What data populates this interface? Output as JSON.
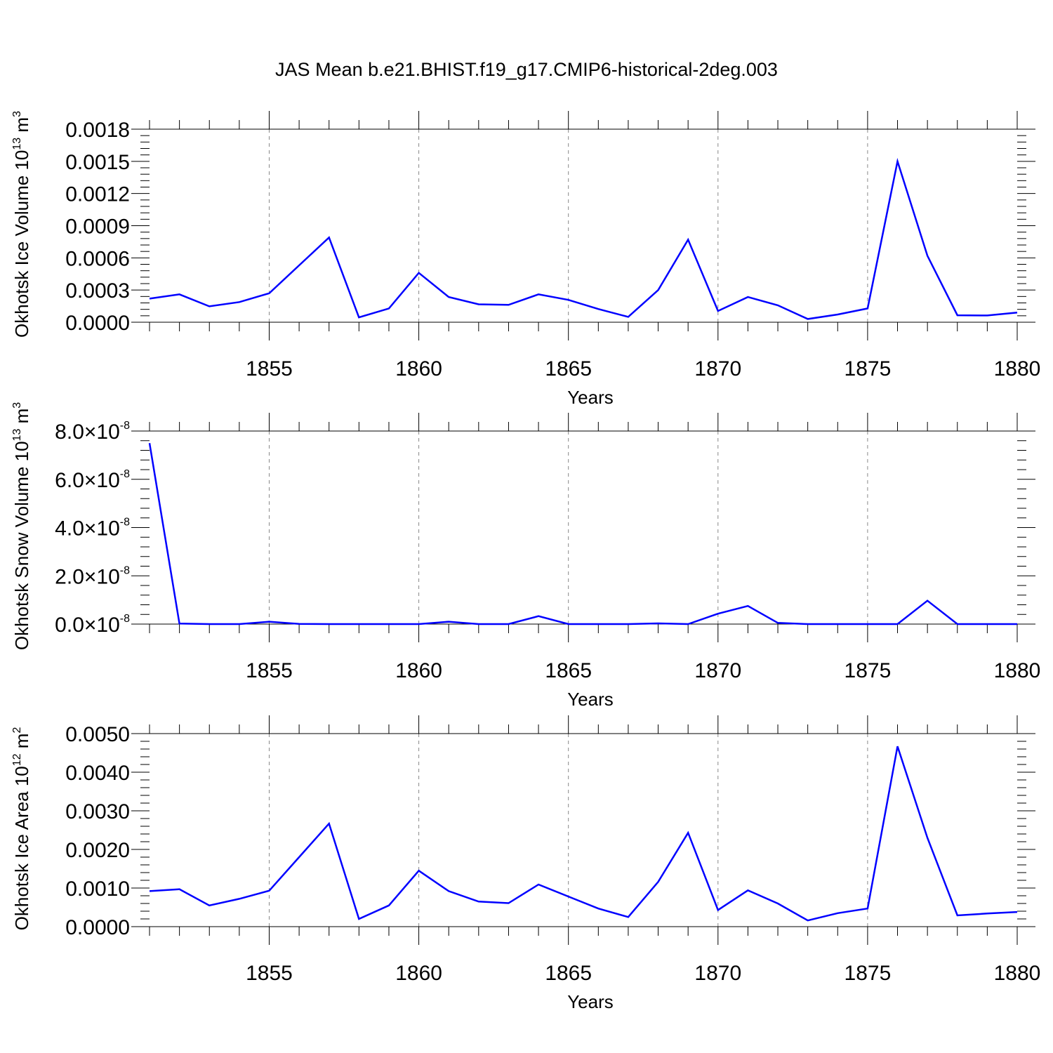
{
  "figure_title": "JAS Mean b.e21.BHIST.f19_g17.CMIP6-historical-2deg.003",
  "chart_data": [
    {
      "type": "line",
      "ylabel": {
        "text": "Okhotsk Ice Volume 10",
        "exp": "13",
        "unit": " m",
        "unit_exp": "3"
      },
      "xlabel": "Years",
      "xlim": [
        1851,
        1880
      ],
      "ylim": [
        0,
        0.0018
      ],
      "xticks": [
        1855,
        1860,
        1865,
        1870,
        1875,
        1880
      ],
      "yticks": [
        0,
        0.0003,
        0.0006,
        0.0009,
        0.0012,
        0.0015,
        0.0018
      ],
      "ytick_labels": [
        "0.0000",
        "0.0003",
        "0.0006",
        "0.0009",
        "0.0012",
        "0.0015",
        "0.0018"
      ],
      "ytick_exp": null,
      "grid": "x-dashed",
      "line_color": "#0000ff",
      "x": [
        1851,
        1852,
        1853,
        1854,
        1855,
        1856,
        1857,
        1858,
        1859,
        1860,
        1861,
        1862,
        1863,
        1864,
        1865,
        1866,
        1867,
        1868,
        1869,
        1870,
        1871,
        1872,
        1873,
        1874,
        1875,
        1876,
        1877,
        1878,
        1879,
        1880
      ],
      "values": [
        0.00022,
        0.00026,
        0.000148,
        0.000188,
        0.00027,
        0.00053,
        0.00079,
        4.5e-05,
        0.000128,
        0.00046,
        0.000235,
        0.000167,
        0.000162,
        0.00026,
        0.000208,
        0.000123,
        5e-05,
        0.0003,
        0.00077,
        0.000105,
        0.000235,
        0.000158,
        3e-05,
        7.2e-05,
        0.000128,
        0.0015,
        0.00062,
        6.5e-05,
        6.3e-05,
        9e-05
      ]
    },
    {
      "type": "line",
      "ylabel": {
        "text": "Okhotsk Snow Volume 10",
        "exp": "13",
        "unit": " m",
        "unit_exp": "3"
      },
      "xlabel": "Years",
      "xlim": [
        1851,
        1880
      ],
      "ylim": [
        0,
        8e-08
      ],
      "xticks": [
        1855,
        1860,
        1865,
        1870,
        1875,
        1880
      ],
      "yticks": [
        0,
        2e-08,
        4e-08,
        6e-08,
        8e-08
      ],
      "ytick_labels": [
        "0.0×10",
        "2.0×10",
        "4.0×10",
        "6.0×10",
        "8.0×10"
      ],
      "ytick_exp": "-8",
      "grid": "x-dashed",
      "line_color": "#0000ff",
      "x": [
        1851,
        1852,
        1853,
        1854,
        1855,
        1856,
        1857,
        1858,
        1859,
        1860,
        1861,
        1862,
        1863,
        1864,
        1865,
        1866,
        1867,
        1868,
        1869,
        1870,
        1871,
        1872,
        1873,
        1874,
        1875,
        1876,
        1877,
        1878,
        1879,
        1880
      ],
      "values": [
        7.5e-08,
        2e-10,
        0,
        0,
        1e-09,
        1e-10,
        0,
        0,
        0,
        0,
        1e-09,
        0,
        0,
        3.3e-09,
        0,
        0,
        0,
        3e-10,
        0,
        4.3e-09,
        7.5e-09,
        5e-10,
        0,
        0,
        0,
        0,
        9.7e-09,
        0,
        0,
        0
      ]
    },
    {
      "type": "line",
      "ylabel": {
        "text": "Okhotsk Ice Area 10",
        "exp": "12",
        "unit": " m",
        "unit_exp": "2"
      },
      "xlabel": "Years",
      "xlim": [
        1851,
        1880
      ],
      "ylim": [
        0,
        0.005
      ],
      "xticks": [
        1855,
        1860,
        1865,
        1870,
        1875,
        1880
      ],
      "yticks": [
        0,
        0.001,
        0.002,
        0.003,
        0.004,
        0.005
      ],
      "ytick_labels": [
        "0.0000",
        "0.0010",
        "0.0020",
        "0.0030",
        "0.0040",
        "0.0050"
      ],
      "ytick_exp": null,
      "grid": "x-dashed",
      "line_color": "#0000ff",
      "x": [
        1851,
        1852,
        1853,
        1854,
        1855,
        1856,
        1857,
        1858,
        1859,
        1860,
        1861,
        1862,
        1863,
        1864,
        1865,
        1866,
        1867,
        1868,
        1869,
        1870,
        1871,
        1872,
        1873,
        1874,
        1875,
        1876,
        1877,
        1878,
        1879,
        1880
      ],
      "values": [
        0.00092,
        0.00097,
        0.00055,
        0.00072,
        0.00093,
        0.0018,
        0.00267,
        0.0002,
        0.00055,
        0.00145,
        0.00092,
        0.00065,
        0.00061,
        0.00109,
        0.00078,
        0.00047,
        0.00025,
        0.00116,
        0.00243,
        0.00043,
        0.00094,
        0.0006,
        0.00016,
        0.00035,
        0.00047,
        0.00467,
        0.0023,
        0.00029,
        0.00034,
        0.00038
      ]
    }
  ]
}
